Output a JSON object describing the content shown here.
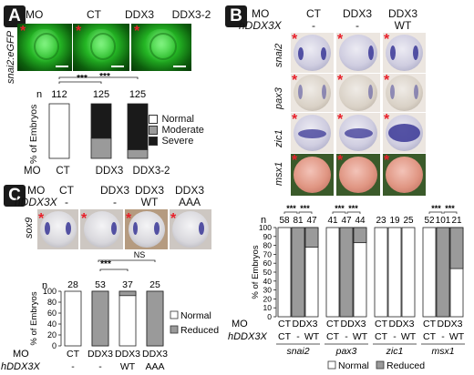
{
  "panels": {
    "A": {
      "letter": "A",
      "mo_label": "MO",
      "conditions": [
        "CT",
        "DDX3",
        "DDX3-2"
      ],
      "side_label": "snai2:eGFP",
      "bottom_label_mo": "MO",
      "ylabel": "% of Embryos",
      "n_label": "n",
      "sig": [
        "***",
        "***"
      ],
      "legend": [
        "Normal",
        "Moderate",
        "Severe"
      ]
    },
    "B": {
      "letter": "B",
      "mo_label": "MO",
      "hddx_label": "hDDX3X",
      "conditions": [
        "CT",
        "DDX3",
        "DDX3"
      ],
      "hddx_values": [
        "-",
        "-",
        "WT"
      ],
      "rows": [
        "snai2",
        "pax3",
        "zic1",
        "msx1"
      ],
      "ylabel": "% of Embryos",
      "n_label": "n",
      "bottom_mo": "MO",
      "bottom_hddx": "hDDX3X",
      "ddx3_group": "DDX3",
      "sub_conditions": [
        "CT",
        "-",
        "WT"
      ],
      "legend": [
        "Normal",
        "Reduced"
      ]
    },
    "C": {
      "letter": "C",
      "mo_label": "MO",
      "hddx_label": "hDDX3X",
      "conditions": [
        "CT",
        "DDX3",
        "DDX3",
        "DDX3"
      ],
      "hddx_values": [
        "-",
        "-",
        "WT",
        "AAA"
      ],
      "side_label": "sox9",
      "ylabel": "% of Embryos",
      "n_label": "n",
      "bottom_mo": "MO",
      "bottom_hddx": "hDDX3X",
      "bottom_conditions": [
        "CT",
        "DDX3",
        "DDX3",
        "DDX3"
      ],
      "bottom_hddx_values": [
        "-",
        "-",
        "WT",
        "AAA"
      ],
      "sig_labels": [
        "***",
        "NS"
      ],
      "legend": [
        "Normal",
        "Reduced"
      ]
    }
  },
  "chart_data": [
    {
      "panel": "A",
      "type": "bar",
      "stacked": true,
      "categories": [
        "CT",
        "DDX3",
        "DDX3-2"
      ],
      "n": [
        112,
        125,
        125
      ],
      "series": [
        {
          "name": "Normal",
          "values": [
            100,
            0,
            0
          ],
          "color": "#ffffff"
        },
        {
          "name": "Moderate",
          "values": [
            0,
            37,
            16
          ],
          "color": "#9a9a9a"
        },
        {
          "name": "Severe",
          "values": [
            0,
            63,
            84
          ],
          "color": "#1a1a1a"
        }
      ],
      "ylabel": "% of Embryos",
      "ylim": [
        0,
        100
      ]
    },
    {
      "panel": "B",
      "type": "bar",
      "stacked": true,
      "genes": [
        "snai2",
        "pax3",
        "zic1",
        "msx1"
      ],
      "conditions": [
        "CT",
        "DDX3 -",
        "DDX3 WT"
      ],
      "n": [
        58,
        81,
        47,
        41,
        47,
        44,
        23,
        19,
        25,
        52,
        101,
        21
      ],
      "reduced": [
        0,
        100,
        22,
        0,
        100,
        17,
        0,
        0,
        0,
        0,
        100,
        46
      ],
      "sig": [
        "***",
        "***",
        "***",
        "***",
        "",
        "",
        "***",
        "***"
      ],
      "series_names": [
        "Normal",
        "Reduced"
      ],
      "colors": {
        "Normal": "#ffffff",
        "Reduced": "#9a9a9a"
      },
      "yticks": [
        0,
        10,
        20,
        30,
        40,
        50,
        60,
        70,
        80,
        90,
        100
      ],
      "ylabel": "% of Embryos",
      "ylim": [
        0,
        100
      ]
    },
    {
      "panel": "C",
      "type": "bar",
      "stacked": true,
      "categories": [
        "CT -",
        "DDX3 -",
        "DDX3 WT",
        "DDX3 AAA"
      ],
      "n": [
        28,
        53,
        37,
        25
      ],
      "reduced": [
        0,
        100,
        8,
        100
      ],
      "series_names": [
        "Normal",
        "Reduced"
      ],
      "colors": {
        "Normal": "#ffffff",
        "Reduced": "#9a9a9a"
      },
      "yticks": [
        0,
        20,
        40,
        60,
        80,
        100
      ],
      "ylabel": "% of Embryos",
      "ylim": [
        0,
        100
      ]
    }
  ]
}
